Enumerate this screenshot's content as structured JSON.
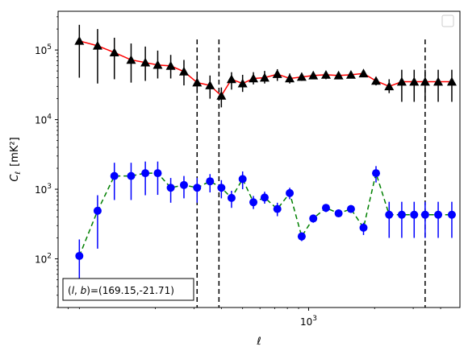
{
  "chart_data": {
    "type": "scatter",
    "xlabel": "ℓ",
    "ylabel": "C",
    "ylabel_sub": "ℓ",
    "ylabel_units": "[mK²]",
    "xscale": "log",
    "yscale": "log",
    "xlim": [
      72,
      4900
    ],
    "ylim": [
      20,
      360000
    ],
    "x_tick_labels": [
      {
        "value": 1000,
        "base": "10",
        "exp": "3"
      }
    ],
    "y_tick_labels": [
      {
        "value": 100,
        "base": "10",
        "exp": "2"
      },
      {
        "value": 1000,
        "base": "10",
        "exp": "3"
      },
      {
        "value": 10000,
        "base": "10",
        "exp": "4"
      },
      {
        "value": 100000,
        "base": "10",
        "exp": "5"
      }
    ],
    "vlines": [
      310,
      390,
      3400
    ],
    "legend": {
      "position": "top-right",
      "entries": []
    },
    "annotation": {
      "text": "(l, b)=(169.15,-21.71)",
      "position": "bottom-left"
    },
    "series": [
      {
        "marker": "triangle",
        "marker_color": "#000000",
        "line_color": "#ff0000",
        "line_style": "solid",
        "errorbar_color": "#000000",
        "x": [
          90,
          109,
          130,
          155,
          180,
          205,
          235,
          270,
          310,
          355,
          400,
          445,
          500,
          560,
          630,
          720,
          820,
          930,
          1050,
          1200,
          1370,
          1560,
          1780,
          2030,
          2330,
          2660,
          3030,
          3400,
          3900,
          4500
        ],
        "y": [
          135000,
          115000,
          92000,
          72000,
          66000,
          61000,
          59000,
          49000,
          34000,
          31000,
          22000,
          38000,
          33000,
          39000,
          40000,
          45000,
          39000,
          41000,
          43000,
          44000,
          43000,
          44000,
          46000,
          36000,
          30000,
          35000,
          35000,
          35000,
          35000,
          35000
        ],
        "yerr_low": [
          40000,
          33000,
          38000,
          34000,
          36000,
          39000,
          39000,
          31000,
          24000,
          20000,
          15000,
          27000,
          25000,
          32000,
          33000,
          36000,
          33000,
          36000,
          38000,
          38000,
          38000,
          39000,
          42000,
          31000,
          24000,
          18000,
          18000,
          18000,
          18000,
          18000
        ],
        "yerr_high": [
          230000,
          200000,
          150000,
          124000,
          112000,
          98000,
          85000,
          72000,
          48000,
          43000,
          29000,
          48000,
          44000,
          48000,
          50000,
          53000,
          46000,
          47000,
          48000,
          49000,
          48000,
          49000,
          50000,
          40000,
          38000,
          52000,
          52000,
          52000,
          52000,
          52000
        ]
      },
      {
        "marker": "circle",
        "marker_color": "#0000ff",
        "line_color": "#008000",
        "line_style": "dashed",
        "errorbar_color": "#0000ff",
        "x": [
          90,
          109,
          130,
          155,
          180,
          205,
          235,
          270,
          310,
          355,
          400,
          445,
          500,
          560,
          630,
          720,
          820,
          930,
          1050,
          1200,
          1370,
          1560,
          1780,
          2030,
          2330,
          2660,
          3030,
          3400,
          3900,
          4500
        ],
        "y": [
          110,
          490,
          1550,
          1550,
          1700,
          1700,
          1050,
          1150,
          1050,
          1300,
          1050,
          750,
          1400,
          650,
          760,
          520,
          880,
          210,
          380,
          540,
          450,
          520,
          280,
          1700,
          430,
          430,
          430,
          430,
          430,
          430
        ],
        "yerr_low": [
          45,
          140,
          700,
          700,
          820,
          830,
          640,
          740,
          640,
          900,
          740,
          540,
          1000,
          520,
          620,
          410,
          720,
          180,
          330,
          470,
          400,
          460,
          220,
          1250,
          200,
          200,
          200,
          200,
          200,
          200
        ],
        "yerr_high": [
          190,
          820,
          2400,
          2400,
          2500,
          2500,
          1450,
          1550,
          1450,
          1650,
          1350,
          950,
          1800,
          800,
          920,
          640,
          1050,
          240,
          430,
          610,
          510,
          590,
          330,
          2150,
          660,
          660,
          660,
          660,
          660,
          660
        ]
      }
    ]
  }
}
